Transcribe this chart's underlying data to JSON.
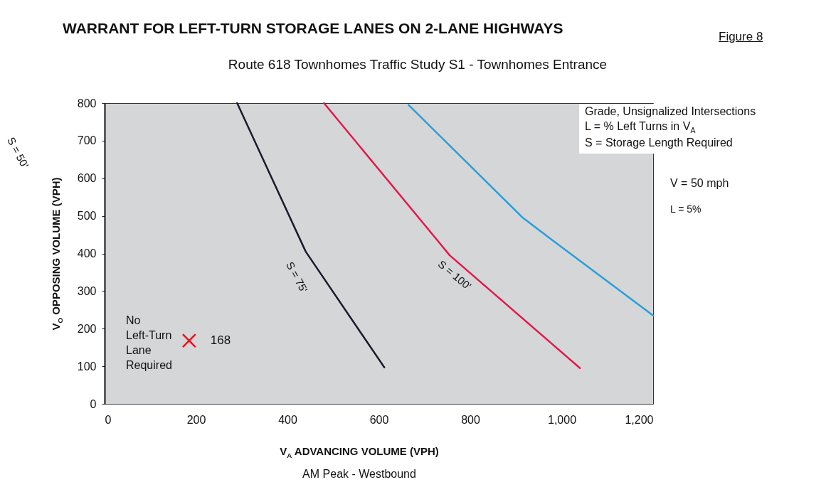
{
  "chart_data": {
    "type": "line",
    "title": "WARRANT FOR LEFT-TURN STORAGE LANES ON 2-LANE HIGHWAYS",
    "subtitle": "Route 618 Townhomes Traffic Study S1 - Townhomes Entrance",
    "xlabel": "V$_{A}$ ADVANCING VOLUME (VPH)",
    "ylabel": "V$_{O}$ OPPOSING VOLUME (VPH)",
    "xlim": [
      0,
      1200
    ],
    "ylim": [
      0,
      800
    ],
    "xticks": [
      0,
      200,
      400,
      600,
      800,
      {
        "value": 1000,
        "label": "1,000"
      },
      {
        "value": 1200,
        "label": "1,200"
      }
    ],
    "yticks": [
      0,
      100,
      200,
      300,
      400,
      500,
      600,
      700,
      800
    ],
    "series": [
      {
        "name": "S = 75'",
        "color": "#1a1a2e",
        "x": [
          290,
          440,
          612
        ],
        "values": [
          800,
          405,
          97
        ]
      },
      {
        "name": "S = 100'",
        "color": "#e0194a",
        "x": [
          480,
          728,
          755,
          1040
        ],
        "values": [
          800,
          435,
          395,
          95
        ]
      },
      {
        "color": "#2a9fd6",
        "x": [
          665,
          915,
          980,
          1200
        ],
        "values": [
          795,
          495,
          435,
          235
        ]
      },
      {
        "type": "scatter",
        "marker": "cross",
        "color": "#e8141e",
        "x": [
          185
        ],
        "values": [
          168
        ]
      }
    ],
    "annotations": [
      "Figure 8",
      "Grade, Unsignalized Intersections",
      "L = % Left Turns in V$_{A}$",
      "S = Storage Length Required",
      "V = 50 mph",
      "L = 5%",
      "No Left-Turn Lane Required",
      "AM Peak - Westbound",
      "S = 50'",
      {
        "text": "168",
        "x": 185,
        "y": 168
      }
    ]
  }
}
